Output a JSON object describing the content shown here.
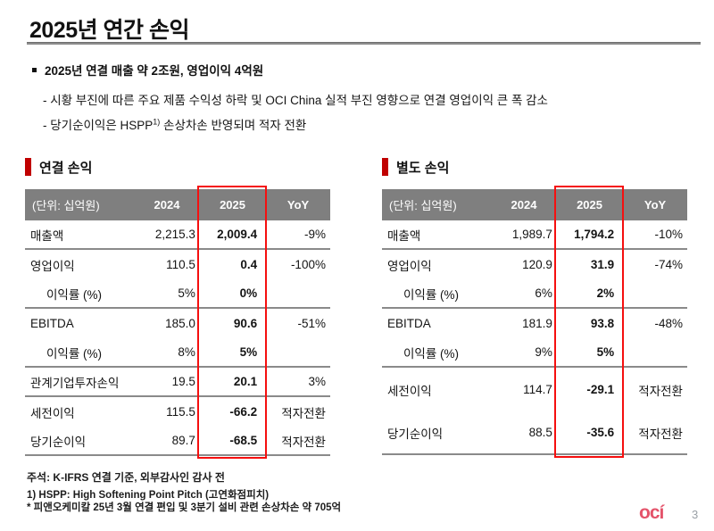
{
  "page": {
    "title": "2025년 연간 손익",
    "page_number": "3",
    "logo_text": "ocí",
    "colors": {
      "accent_dark_red": "#c00000",
      "highlight_red": "#f50f0f",
      "header_gray": "#7f7f7f",
      "logo_pink": "#e4536a"
    }
  },
  "summary": {
    "headline": "2025년 연결 매출 약 2조원, 영업이익 4억원",
    "bullet_1": "- 시황 부진에 따른 주요 제품 수익성 하락 및 OCI China 실적 부진 영향으로 연결 영업이익 큰 폭 감소",
    "bullet_2_prefix": "- 당기순이익은 HSPP",
    "bullet_2_sup": "1)",
    "bullet_2_suffix": " 손상차손 반영되며 적자 전환"
  },
  "tables": [
    {
      "section_title": "연결 손익",
      "unit_label": "(단위: 십억원)",
      "col_2024": "2024",
      "col_2025": "2025",
      "col_yoy": "YoY",
      "rows": [
        {
          "label": "매출액",
          "y2024": "2,215.3",
          "y2025": "2,009.4",
          "yoy": "-9%"
        },
        {
          "label": "영업이익",
          "y2024": "110.5",
          "y2025": "0.4",
          "yoy": "-100%"
        },
        {
          "label": "이익률 (%)",
          "y2024": "5%",
          "y2025": "0%",
          "yoy": ""
        },
        {
          "label": "EBITDA",
          "y2024": "185.0",
          "y2025": "90.6",
          "yoy": "-51%"
        },
        {
          "label": "이익률 (%)",
          "y2024": "8%",
          "y2025": "5%",
          "yoy": ""
        },
        {
          "label": "관계기업투자손익",
          "y2024": "19.5",
          "y2025": "20.1",
          "yoy": "3%"
        },
        {
          "label": "세전이익",
          "y2024": "115.5",
          "y2025": "-66.2",
          "yoy": "적자전환"
        },
        {
          "label": "당기순이익",
          "y2024": "89.7",
          "y2025": "-68.5",
          "yoy": "적자전환"
        }
      ]
    },
    {
      "section_title": "별도 손익",
      "unit_label": "(단위: 십억원)",
      "col_2024": "2024",
      "col_2025": "2025",
      "col_yoy": "YoY",
      "rows": [
        {
          "label": "매출액",
          "y2024": "1,989.7",
          "y2025": "1,794.2",
          "yoy": "-10%"
        },
        {
          "label": "영업이익",
          "y2024": "120.9",
          "y2025": "31.9",
          "yoy": "-74%"
        },
        {
          "label": "이익률 (%)",
          "y2024": "6%",
          "y2025": "2%",
          "yoy": ""
        },
        {
          "label": "EBITDA",
          "y2024": "181.9",
          "y2025": "93.8",
          "yoy": "-48%"
        },
        {
          "label": "이익률 (%)",
          "y2024": "9%",
          "y2025": "5%",
          "yoy": ""
        },
        {
          "label": "세전이익",
          "y2024": "114.7",
          "y2025": "-29.1",
          "yoy": "적자전환"
        },
        {
          "label": "당기순이익",
          "y2024": "88.5",
          "y2025": "-35.6",
          "yoy": "적자전환"
        }
      ]
    }
  ],
  "notes": {
    "note_1": "주석: K-IFRS 연결 기준, 외부감사인 감사 전",
    "note_2": "1) HSPP: High Softening Point Pitch (고연화점피치)",
    "note_3": "* 피앤오케미칼 25년 3월 연결 편입 및 3분기 설비 관련 손상차손 약 705억"
  }
}
